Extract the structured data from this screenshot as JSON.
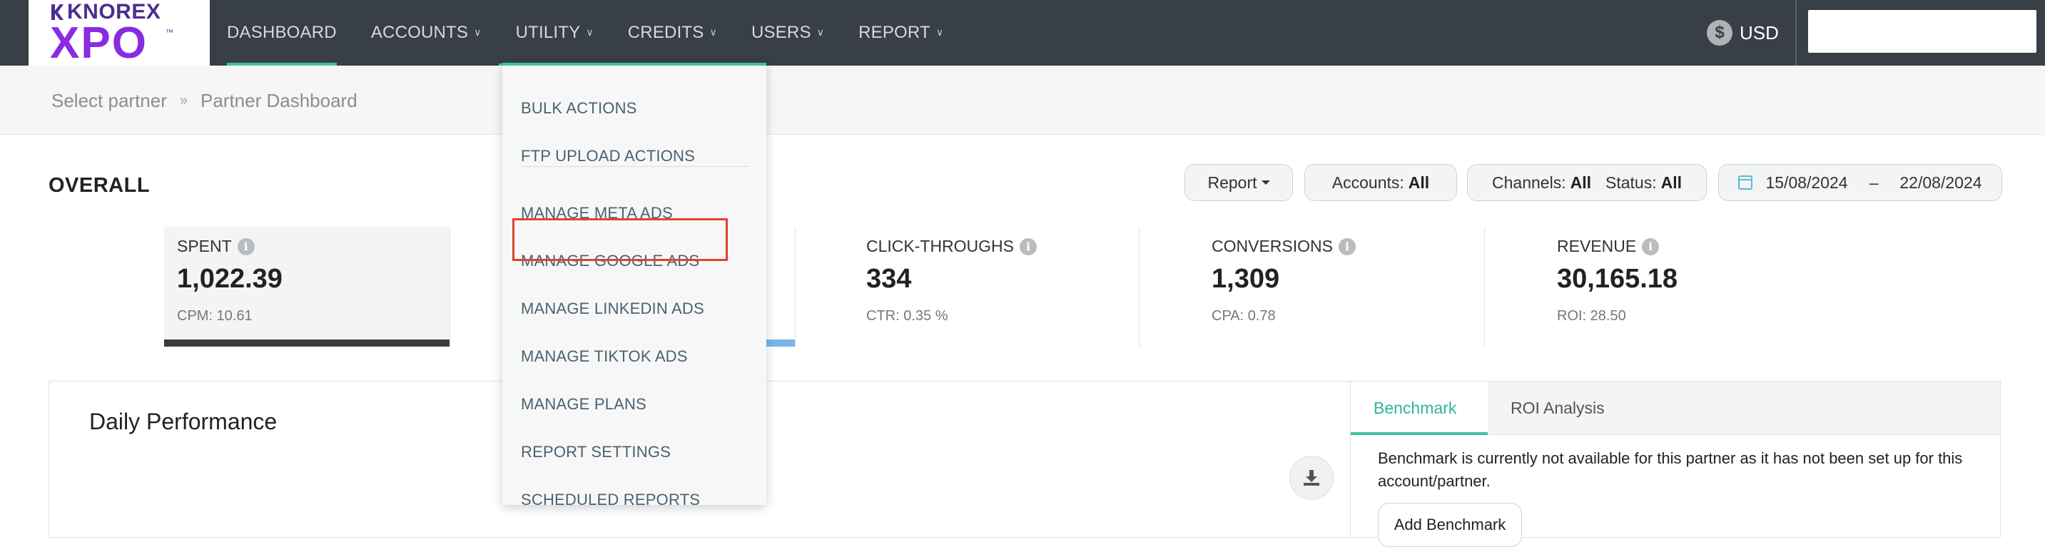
{
  "brand": {
    "name_top": "KNOREX",
    "name_bottom": "XPO",
    "trademark": "™"
  },
  "nav": {
    "items": [
      {
        "label": "DASHBOARD"
      },
      {
        "label": "ACCOUNTS"
      },
      {
        "label": "UTILITY"
      },
      {
        "label": "CREDITS"
      },
      {
        "label": "USERS"
      },
      {
        "label": "REPORT"
      }
    ],
    "currency_symbol": "$",
    "currency_label": "USD",
    "search_placeholder": ""
  },
  "breadcrumb": {
    "items": [
      "Select partner",
      "Partner Dashboard"
    ],
    "separator": "»"
  },
  "overall": {
    "title": "OVERALL",
    "report_button": "Report",
    "accounts_label": "Accounts:",
    "accounts_value": "All",
    "channels_label": "Channels:",
    "channels_value": "All",
    "status_label": "Status:",
    "status_value": "All",
    "date_from": "15/08/2024",
    "date_sep": "–",
    "date_to": "22/08/2024"
  },
  "stats": [
    {
      "label": "SPENT",
      "value": "1,022.39",
      "sub": "CPM: 10.61"
    },
    {
      "label": "CLICK-THROUGHS",
      "value": "334",
      "sub": "CTR: 0.35 %"
    },
    {
      "label": "CONVERSIONS",
      "value": "1,309",
      "sub": "CPA: 0.78"
    },
    {
      "label": "REVENUE",
      "value": "30,165.18",
      "sub": "ROI: 28.50"
    }
  ],
  "daily": {
    "title": "Daily Performance"
  },
  "benchmark": {
    "tabs": [
      "Benchmark",
      "ROI Analysis"
    ],
    "message": "Benchmark is currently not available for this partner as it has not been set up for this account/partner.",
    "add_button": "Add Benchmark"
  },
  "utility_menu": {
    "items": [
      "BULK ACTIONS",
      "FTP UPLOAD ACTIONS",
      "MANAGE META ADS",
      "MANAGE GOOGLE ADS",
      "MANAGE LINKEDIN ADS",
      "MANAGE TIKTOK ADS",
      "MANAGE PLANS",
      "REPORT SETTINGS",
      "SCHEDULED REPORTS"
    ],
    "highlighted": "MANAGE GOOGLE ADS"
  },
  "colors": {
    "nav_bg": "#383f46",
    "accent": "#3fc1a9",
    "brand_purple": "#8a2be2",
    "highlight_red": "#e0442e",
    "spent_bar": "#3a3d40",
    "impressions_bar": "#7ab4ea"
  },
  "icons": [
    "dollar-coin-icon",
    "chevron-down-icon",
    "info-icon",
    "calendar-icon",
    "download-icon"
  ]
}
